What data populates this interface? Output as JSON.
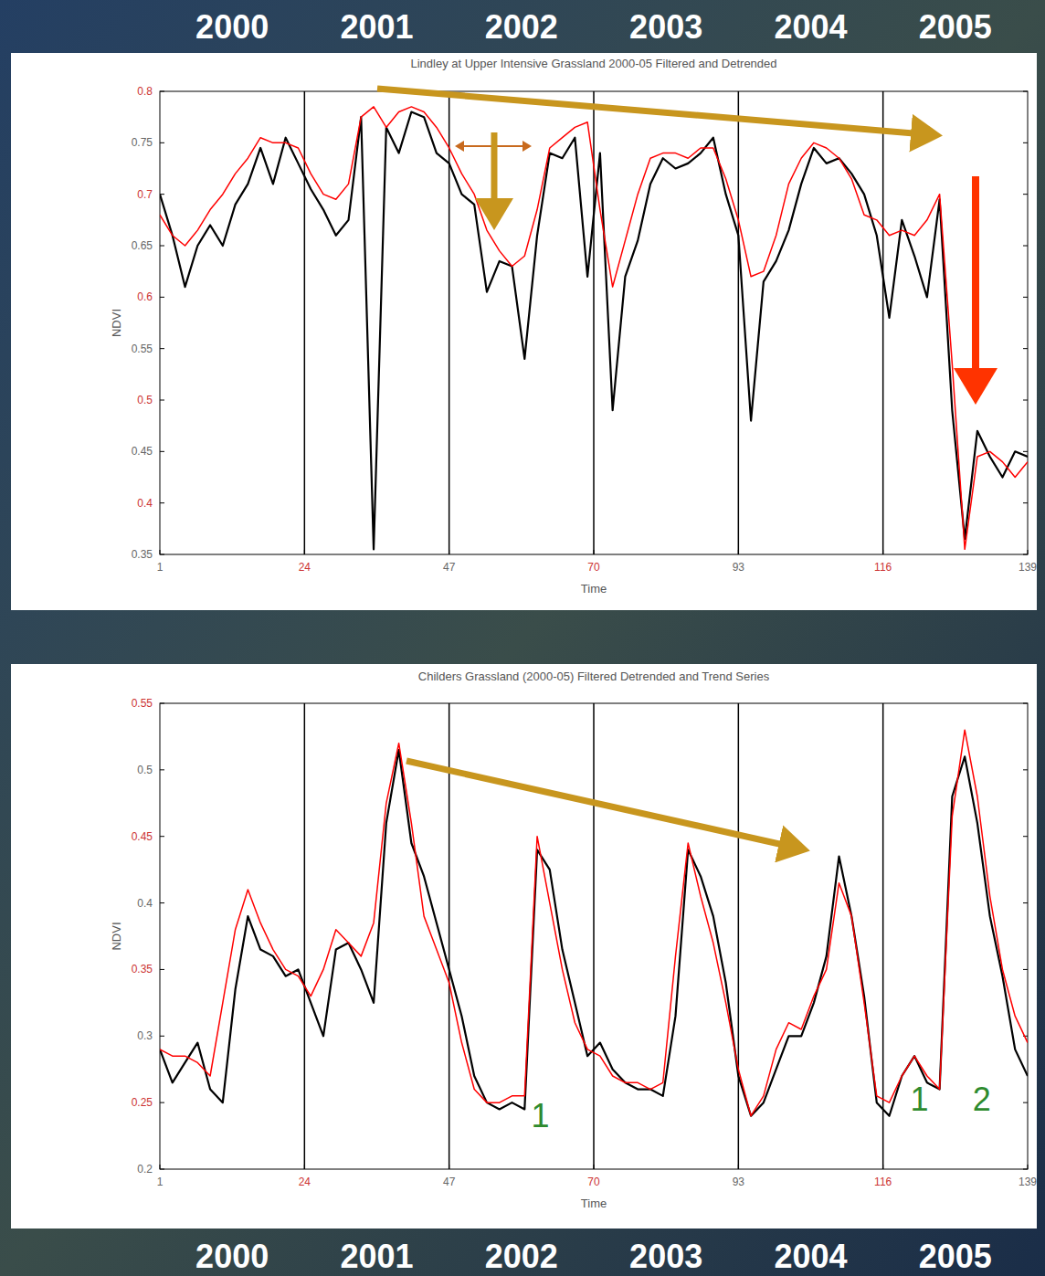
{
  "chart_data": [
    {
      "type": "line",
      "title": "Lindley at Upper Intensive Grassland 2000-05 Filtered and Detrended",
      "x_label": "Time",
      "y_label": "NDVI",
      "year_labels": [
        "2000",
        "2001",
        "2002",
        "2003",
        "2004",
        "2005"
      ],
      "xlim": [
        1,
        139
      ],
      "xticks": [
        1,
        24,
        47,
        70,
        93,
        116,
        139
      ],
      "ylim": [
        0.35,
        0.8
      ],
      "yticks": [
        0.35,
        0.4,
        0.45,
        0.5,
        0.55,
        0.6,
        0.65,
        0.7,
        0.75,
        0.8
      ],
      "grid": true,
      "x": [
        1,
        3,
        5,
        7,
        9,
        11,
        13,
        15,
        17,
        19,
        21,
        23,
        25,
        27,
        29,
        31,
        33,
        35,
        37,
        39,
        41,
        43,
        45,
        47,
        49,
        51,
        53,
        55,
        57,
        59,
        61,
        63,
        65,
        67,
        69,
        71,
        73,
        75,
        77,
        79,
        81,
        83,
        85,
        87,
        89,
        91,
        93,
        95,
        97,
        99,
        101,
        103,
        105,
        107,
        109,
        111,
        113,
        115,
        117,
        119,
        121,
        123,
        125,
        127,
        129,
        131,
        133,
        135,
        137,
        139
      ],
      "series": [
        {
          "color": "#000000",
          "values": [
            0.7,
            0.66,
            0.61,
            0.65,
            0.67,
            0.65,
            0.69,
            0.71,
            0.745,
            0.71,
            0.755,
            0.73,
            0.705,
            0.685,
            0.66,
            0.675,
            0.775,
            0.355,
            0.765,
            0.74,
            0.78,
            0.775,
            0.74,
            0.73,
            0.7,
            0.69,
            0.605,
            0.635,
            0.63,
            0.54,
            0.66,
            0.74,
            0.735,
            0.755,
            0.62,
            0.74,
            0.49,
            0.62,
            0.655,
            0.71,
            0.735,
            0.725,
            0.73,
            0.74,
            0.755,
            0.7,
            0.66,
            0.48,
            0.615,
            0.635,
            0.665,
            0.71,
            0.745,
            0.73,
            0.735,
            0.72,
            0.7,
            0.66,
            0.58,
            0.675,
            0.64,
            0.6,
            0.695,
            0.49,
            0.365,
            0.47,
            0.445,
            0.425,
            0.45,
            0.445
          ]
        },
        {
          "color": "#ff0000",
          "values": [
            0.68,
            0.66,
            0.65,
            0.665,
            0.685,
            0.7,
            0.72,
            0.735,
            0.755,
            0.75,
            0.75,
            0.745,
            0.72,
            0.7,
            0.695,
            0.71,
            0.775,
            0.785,
            0.765,
            0.78,
            0.785,
            0.78,
            0.765,
            0.745,
            0.72,
            0.7,
            0.665,
            0.645,
            0.63,
            0.64,
            0.685,
            0.745,
            0.755,
            0.765,
            0.77,
            0.685,
            0.61,
            0.655,
            0.7,
            0.735,
            0.74,
            0.74,
            0.735,
            0.745,
            0.745,
            0.715,
            0.675,
            0.62,
            0.625,
            0.66,
            0.71,
            0.735,
            0.75,
            0.745,
            0.735,
            0.715,
            0.68,
            0.675,
            0.66,
            0.665,
            0.66,
            0.675,
            0.7,
            0.535,
            0.355,
            0.445,
            0.45,
            0.44,
            0.425,
            0.44
          ]
        }
      ]
    },
    {
      "type": "line",
      "title": "Childers Grassland (2000-05) Filtered Detrended and Trend Series",
      "x_label": "Time",
      "y_label": "NDVI",
      "year_labels": [
        "2000",
        "2001",
        "2002",
        "2003",
        "2004",
        "2005"
      ],
      "xlim": [
        1,
        139
      ],
      "xticks": [
        1,
        24,
        47,
        70,
        93,
        116,
        139
      ],
      "ylim": [
        0.2,
        0.55
      ],
      "yticks": [
        0.2,
        0.25,
        0.3,
        0.35,
        0.4,
        0.45,
        0.5,
        0.55
      ],
      "grid": true,
      "annotations": [
        {
          "text": "1",
          "x": 61.5,
          "y": 0.24
        },
        {
          "text": "1",
          "x": 121.8,
          "y": 0.252
        },
        {
          "text": "2",
          "x": 131.7,
          "y": 0.252
        }
      ],
      "x": [
        1,
        3,
        5,
        7,
        9,
        11,
        13,
        15,
        17,
        19,
        21,
        23,
        25,
        27,
        29,
        31,
        33,
        35,
        37,
        39,
        41,
        43,
        45,
        47,
        49,
        51,
        53,
        55,
        57,
        59,
        61,
        63,
        65,
        67,
        69,
        71,
        73,
        75,
        77,
        79,
        81,
        83,
        85,
        87,
        89,
        91,
        93,
        95,
        97,
        99,
        101,
        103,
        105,
        107,
        109,
        111,
        113,
        115,
        117,
        119,
        121,
        123,
        125,
        127,
        129,
        131,
        133,
        135,
        137,
        139
      ],
      "series": [
        {
          "color": "#000000",
          "values": [
            0.29,
            0.265,
            0.28,
            0.295,
            0.26,
            0.25,
            0.335,
            0.39,
            0.365,
            0.36,
            0.345,
            0.35,
            0.325,
            0.3,
            0.365,
            0.37,
            0.35,
            0.325,
            0.46,
            0.515,
            0.445,
            0.42,
            0.385,
            0.35,
            0.315,
            0.27,
            0.25,
            0.245,
            0.25,
            0.245,
            0.44,
            0.425,
            0.365,
            0.325,
            0.285,
            0.295,
            0.275,
            0.265,
            0.26,
            0.26,
            0.255,
            0.315,
            0.44,
            0.42,
            0.39,
            0.34,
            0.27,
            0.24,
            0.25,
            0.275,
            0.3,
            0.3,
            0.325,
            0.36,
            0.435,
            0.39,
            0.33,
            0.25,
            0.24,
            0.27,
            0.285,
            0.265,
            0.26,
            0.48,
            0.51,
            0.46,
            0.39,
            0.345,
            0.29,
            0.27
          ]
        },
        {
          "color": "#ff0000",
          "values": [
            0.29,
            0.285,
            0.285,
            0.28,
            0.27,
            0.325,
            0.38,
            0.41,
            0.385,
            0.365,
            0.35,
            0.345,
            0.33,
            0.35,
            0.38,
            0.37,
            0.36,
            0.385,
            0.475,
            0.52,
            0.46,
            0.39,
            0.365,
            0.34,
            0.295,
            0.26,
            0.25,
            0.25,
            0.255,
            0.255,
            0.45,
            0.4,
            0.35,
            0.31,
            0.29,
            0.285,
            0.27,
            0.265,
            0.265,
            0.26,
            0.265,
            0.36,
            0.445,
            0.405,
            0.37,
            0.325,
            0.275,
            0.24,
            0.255,
            0.29,
            0.31,
            0.305,
            0.33,
            0.35,
            0.415,
            0.39,
            0.325,
            0.255,
            0.25,
            0.27,
            0.285,
            0.27,
            0.26,
            0.465,
            0.53,
            0.48,
            0.405,
            0.35,
            0.315,
            0.295
          ]
        }
      ]
    }
  ]
}
